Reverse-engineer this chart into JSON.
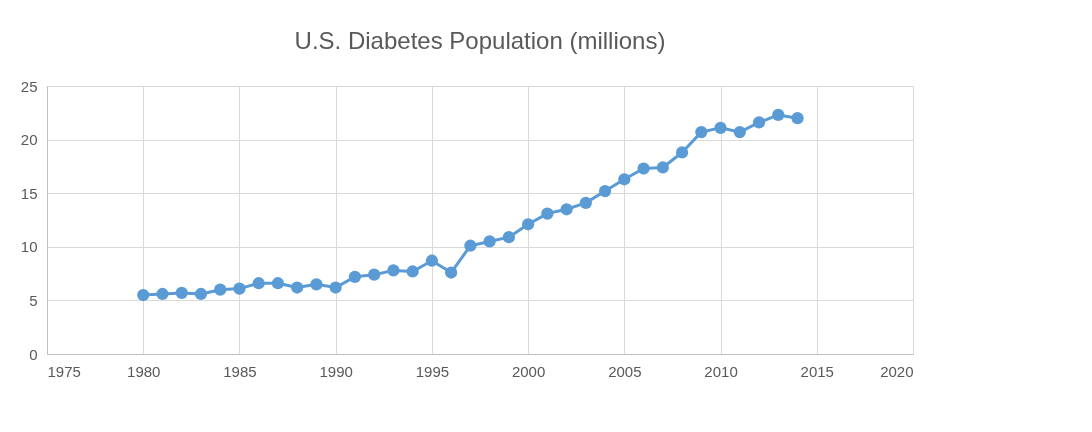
{
  "chart_data": {
    "type": "line",
    "title": "U.S. Diabetes Population (millions)",
    "x": [
      1980,
      1981,
      1982,
      1983,
      1984,
      1985,
      1986,
      1987,
      1988,
      1989,
      1990,
      1991,
      1992,
      1993,
      1994,
      1995,
      1996,
      1997,
      1998,
      1999,
      2000,
      2001,
      2002,
      2003,
      2004,
      2005,
      2006,
      2007,
      2008,
      2009,
      2010,
      2011,
      2012,
      2013,
      2014
    ],
    "series": [
      {
        "color": "#5b9bd5",
        "values": [
          5.5,
          5.6,
          5.7,
          5.6,
          6.0,
          6.1,
          6.6,
          6.6,
          6.2,
          6.5,
          6.2,
          7.2,
          7.4,
          7.8,
          7.7,
          8.7,
          7.6,
          10.1,
          10.5,
          10.9,
          12.1,
          13.1,
          13.5,
          14.1,
          15.2,
          16.3,
          17.3,
          17.4,
          18.8,
          20.7,
          21.1,
          20.7,
          21.6,
          22.3,
          22.0
        ]
      }
    ],
    "xlim": [
      1975,
      2020
    ],
    "xticks": [
      1975,
      1980,
      1985,
      1990,
      1995,
      2000,
      2005,
      2010,
      2015,
      2020
    ],
    "ylim": [
      0,
      25
    ],
    "yticks": [
      0,
      5,
      10,
      15,
      20,
      25
    ],
    "grid": true,
    "marker": "circle",
    "line_style": "solid"
  }
}
